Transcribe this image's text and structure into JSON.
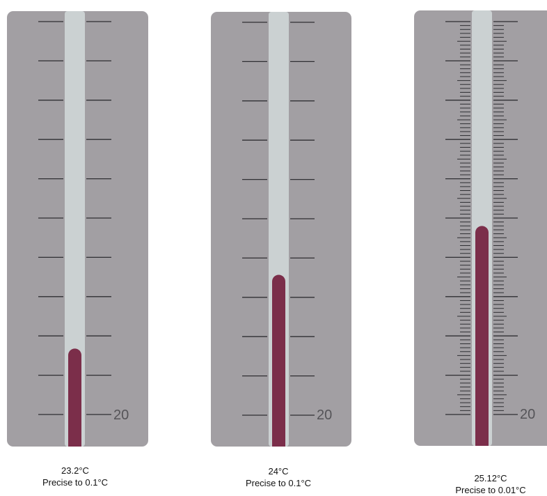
{
  "colors": {
    "panel": "#a29fa3",
    "tube": "#cbd1d2",
    "liquid": "#7b2e4a",
    "tick": "#2f2f33",
    "scale_label": "#555458"
  },
  "thermometers": [
    {
      "scale_label": "20",
      "reading": "23.2°C",
      "precision": "Precise to 0.1°C",
      "level_fraction": 0.225,
      "minor_ticks": 0
    },
    {
      "scale_label": "20",
      "reading": "24°C",
      "precision": "Precise to 0.1°C",
      "level_fraction": 0.395,
      "minor_ticks": 0
    },
    {
      "scale_label": "20",
      "reading": "25.12°C",
      "precision": "Precise to 0.01°C",
      "level_fraction": 0.505,
      "minor_ticks": 9
    }
  ]
}
